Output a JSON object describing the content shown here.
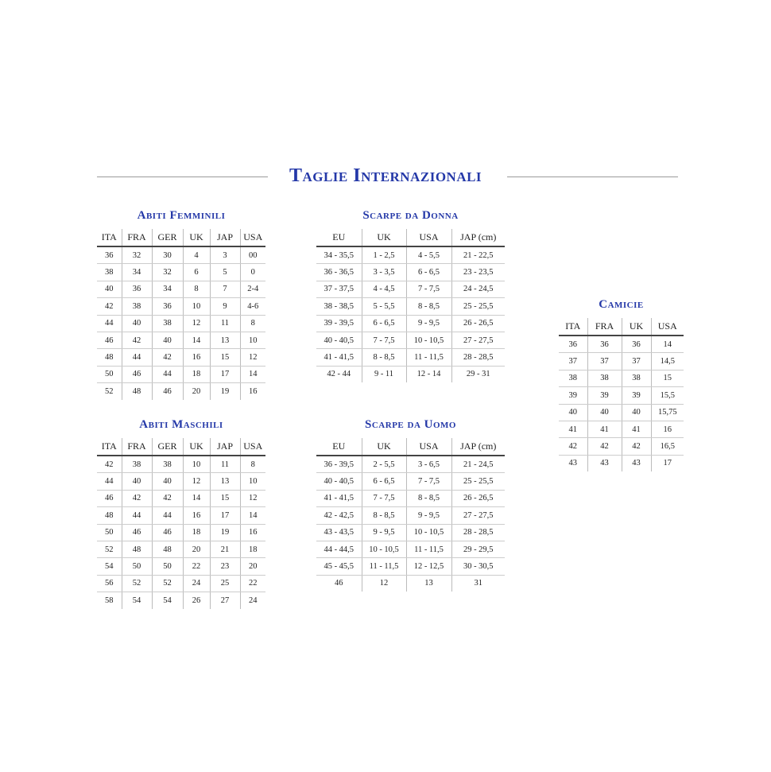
{
  "title": "Taglie Internazionali",
  "colors": {
    "heading": "#2438a8"
  },
  "tables": {
    "abiti_femminili": {
      "title": "Abiti Femminili",
      "headers": [
        "ITA",
        "FRA",
        "GER",
        "UK",
        "JAP",
        "USA"
      ],
      "rows": [
        [
          "36",
          "32",
          "30",
          "4",
          "3",
          "00"
        ],
        [
          "38",
          "34",
          "32",
          "6",
          "5",
          "0"
        ],
        [
          "40",
          "36",
          "34",
          "8",
          "7",
          "2-4"
        ],
        [
          "42",
          "38",
          "36",
          "10",
          "9",
          "4-6"
        ],
        [
          "44",
          "40",
          "38",
          "12",
          "11",
          "8"
        ],
        [
          "46",
          "42",
          "40",
          "14",
          "13",
          "10"
        ],
        [
          "48",
          "44",
          "42",
          "16",
          "15",
          "12"
        ],
        [
          "50",
          "46",
          "44",
          "18",
          "17",
          "14"
        ],
        [
          "52",
          "48",
          "46",
          "20",
          "19",
          "16"
        ]
      ]
    },
    "scarpe_donna": {
      "title": "Scarpe da Donna",
      "headers": [
        "EU",
        "UK",
        "USA",
        "JAP (cm)"
      ],
      "rows": [
        [
          "34 - 35,5",
          "1 - 2,5",
          "4 - 5,5",
          "21 - 22,5"
        ],
        [
          "36 - 36,5",
          "3 - 3,5",
          "6 - 6,5",
          "23 - 23,5"
        ],
        [
          "37 - 37,5",
          "4 - 4,5",
          "7 - 7,5",
          "24 - 24,5"
        ],
        [
          "38 - 38,5",
          "5 - 5,5",
          "8 - 8,5",
          "25 - 25,5"
        ],
        [
          "39 - 39,5",
          "6 - 6,5",
          "9 - 9,5",
          "26 - 26,5"
        ],
        [
          "40 - 40,5",
          "7 - 7,5",
          "10 - 10,5",
          "27 - 27,5"
        ],
        [
          "41 - 41,5",
          "8 - 8,5",
          "11 - 11,5",
          "28 - 28,5"
        ],
        [
          "42 - 44",
          "9 - 11",
          "12 - 14",
          "29 - 31"
        ]
      ]
    },
    "camicie": {
      "title": "Camicie",
      "headers": [
        "ITA",
        "FRA",
        "UK",
        "USA"
      ],
      "rows": [
        [
          "36",
          "36",
          "36",
          "14"
        ],
        [
          "37",
          "37",
          "37",
          "14,5"
        ],
        [
          "38",
          "38",
          "38",
          "15"
        ],
        [
          "39",
          "39",
          "39",
          "15,5"
        ],
        [
          "40",
          "40",
          "40",
          "15,75"
        ],
        [
          "41",
          "41",
          "41",
          "16"
        ],
        [
          "42",
          "42",
          "42",
          "16,5"
        ],
        [
          "43",
          "43",
          "43",
          "17"
        ]
      ]
    },
    "abiti_maschili": {
      "title": "Abiti Maschili",
      "headers": [
        "ITA",
        "FRA",
        "GER",
        "UK",
        "JAP",
        "USA"
      ],
      "rows": [
        [
          "42",
          "38",
          "38",
          "10",
          "11",
          "8"
        ],
        [
          "44",
          "40",
          "40",
          "12",
          "13",
          "10"
        ],
        [
          "46",
          "42",
          "42",
          "14",
          "15",
          "12"
        ],
        [
          "48",
          "44",
          "44",
          "16",
          "17",
          "14"
        ],
        [
          "50",
          "46",
          "46",
          "18",
          "19",
          "16"
        ],
        [
          "52",
          "48",
          "48",
          "20",
          "21",
          "18"
        ],
        [
          "54",
          "50",
          "50",
          "22",
          "23",
          "20"
        ],
        [
          "56",
          "52",
          "52",
          "24",
          "25",
          "22"
        ],
        [
          "58",
          "54",
          "54",
          "26",
          "27",
          "24"
        ]
      ]
    },
    "scarpe_uomo": {
      "title": "Scarpe da Uomo",
      "headers": [
        "EU",
        "UK",
        "USA",
        "JAP (cm)"
      ],
      "rows": [
        [
          "36 - 39,5",
          "2 - 5,5",
          "3 - 6,5",
          "21 - 24,5"
        ],
        [
          "40 - 40,5",
          "6 - 6,5",
          "7 - 7,5",
          "25 - 25,5"
        ],
        [
          "41 - 41,5",
          "7 - 7,5",
          "8 - 8,5",
          "26 - 26,5"
        ],
        [
          "42 - 42,5",
          "8 - 8,5",
          "9 - 9,5",
          "27 - 27,5"
        ],
        [
          "43 - 43,5",
          "9 - 9,5",
          "10 - 10,5",
          "28 - 28,5"
        ],
        [
          "44 - 44,5",
          "10 - 10,5",
          "11 - 11,5",
          "29 - 29,5"
        ],
        [
          "45 - 45,5",
          "11 - 11,5",
          "12 - 12,5",
          "30 - 30,5"
        ],
        [
          "46",
          "12",
          "13",
          "31"
        ]
      ]
    }
  }
}
